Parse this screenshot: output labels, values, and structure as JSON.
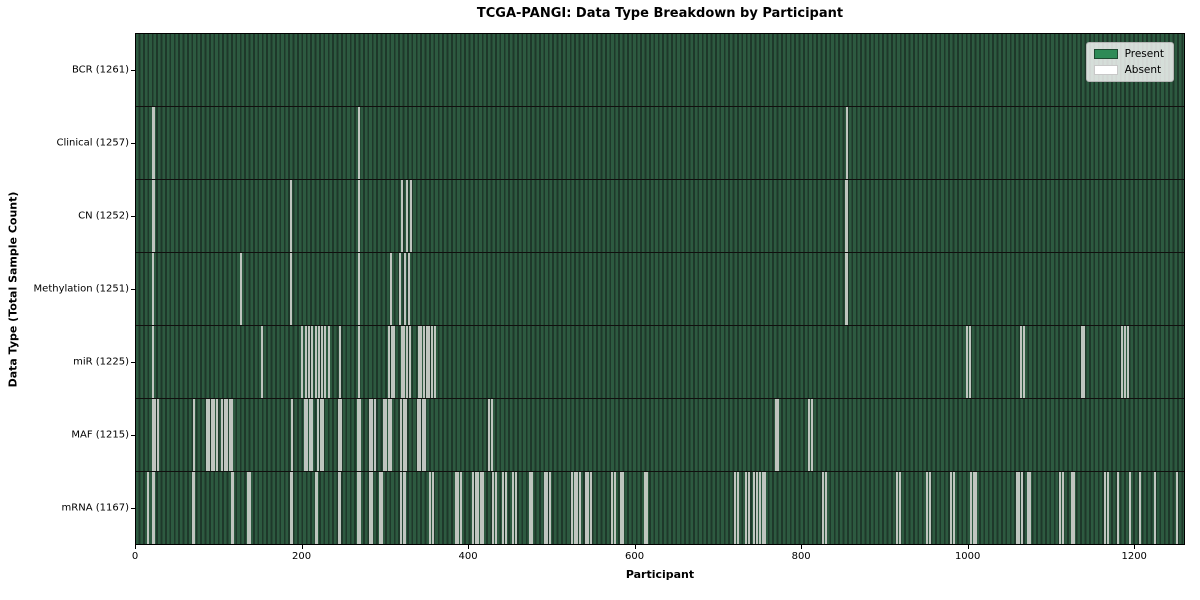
{
  "chart_data": {
    "type": "heatmap",
    "title": "TCGA-PANGI: Data Type Breakdown by Participant",
    "xlabel": "Participant",
    "ylabel": "Data Type (Total Sample Count)",
    "x_ticks": [
      0,
      200,
      400,
      600,
      800,
      1000,
      1200
    ],
    "x_max": 1261,
    "n_participants": 1261,
    "legend": [
      {
        "label": "Present",
        "color": "#2e8b57",
        "edge": "#1d4a31"
      },
      {
        "label": "Absent",
        "color": "#ffffff",
        "edge": "#c8c8c8"
      }
    ],
    "colors": {
      "present_fill": "#2d5a40",
      "present_edge": "#1e382a",
      "absent_line": "#bfc5bf",
      "row_border": "#10100e"
    },
    "rows": [
      {
        "label": "BCR (1261)",
        "total": 1261,
        "absent": []
      },
      {
        "label": "Clinical (1257)",
        "total": 1257,
        "absent": [
          20,
          22,
          268,
          855
        ]
      },
      {
        "label": "CN (1252)",
        "total": 1252,
        "absent": [
          20,
          22,
          187,
          268,
          320,
          326,
          331,
          854,
          856
        ]
      },
      {
        "label": "Methylation (1251)",
        "total": 1251,
        "absent": [
          20,
          126,
          187,
          268,
          307,
          318,
          324,
          329,
          854,
          856
        ]
      },
      {
        "label": "miR (1225)",
        "total": 1225,
        "absent": [
          20,
          152,
          200,
          204,
          208,
          212,
          216,
          220,
          224,
          228,
          232,
          245,
          268,
          305,
          308,
          311,
          320,
          323,
          326,
          330,
          340,
          343,
          346,
          350,
          353,
          356,
          360,
          1000,
          1003,
          1065,
          1068,
          1138,
          1141,
          1186,
          1190,
          1194
        ]
      },
      {
        "label": "MAF (1215)",
        "total": 1215,
        "absent": [
          20,
          23,
          26,
          70,
          85,
          88,
          91,
          94,
          97,
          104,
          107,
          110,
          113,
          116,
          188,
          203,
          206,
          209,
          212,
          219,
          222,
          225,
          244,
          247,
          267,
          270,
          281,
          284,
          287,
          298,
          301,
          304,
          307,
          319,
          322,
          325,
          339,
          342,
          345,
          348,
          425,
          428,
          770,
          773,
          810,
          813
        ]
      },
      {
        "label": "mRNA (1167)",
        "total": 1167,
        "absent": [
          14,
          20,
          22,
          68,
          70,
          115,
          117,
          135,
          137,
          186,
          188,
          216,
          218,
          244,
          246,
          267,
          270,
          281,
          284,
          293,
          296,
          319,
          322,
          324,
          354,
          357,
          385,
          388,
          391,
          406,
          409,
          412,
          415,
          418,
          430,
          433,
          442,
          445,
          454,
          457,
          474,
          477,
          492,
          495,
          498,
          525,
          528,
          531,
          534,
          541,
          544,
          547,
          573,
          576,
          583,
          586,
          612,
          615,
          721,
          724,
          734,
          737,
          744,
          747,
          751,
          754,
          757,
          827,
          830,
          916,
          919,
          952,
          955,
          981,
          984,
          1005,
          1008,
          1011,
          1060,
          1063,
          1066,
          1073,
          1076,
          1112,
          1115,
          1126,
          1129,
          1166,
          1169,
          1182,
          1196,
          1208,
          1226,
          1253
        ]
      }
    ]
  }
}
